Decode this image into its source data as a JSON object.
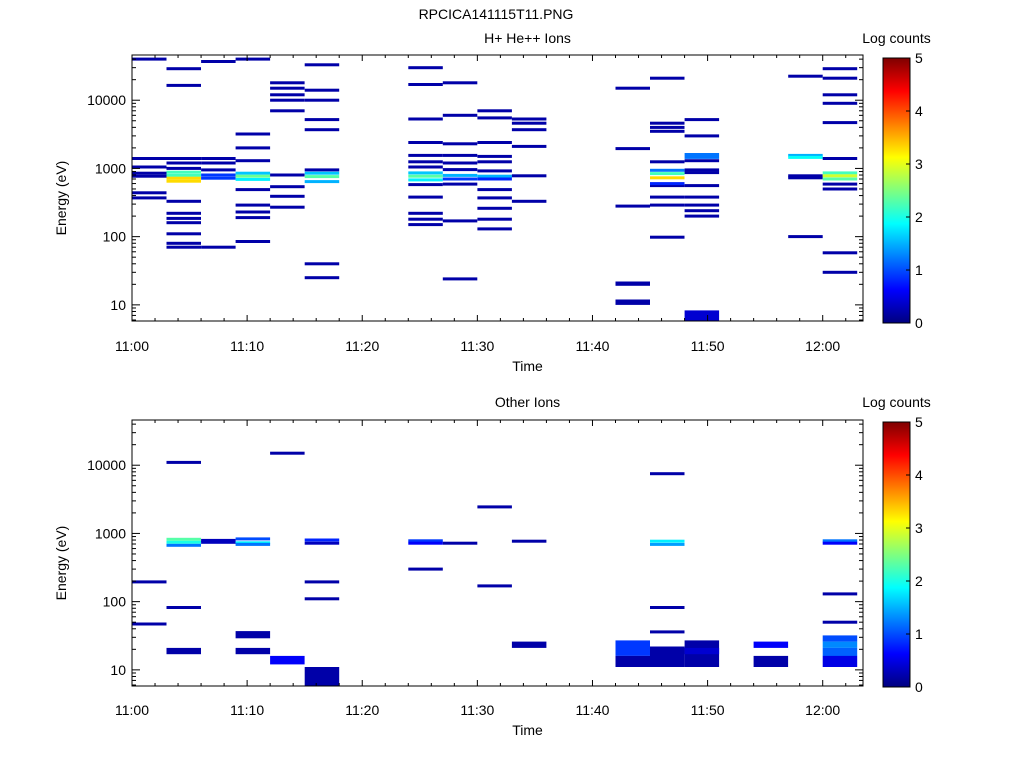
{
  "figure_title": "RPCICA141115T11.PNG",
  "colorscale": {
    "label": "Log counts",
    "min": 0,
    "max": 5,
    "ticks": [
      "0",
      "1",
      "2",
      "3",
      "4",
      "5"
    ],
    "stops": [
      "#00007f",
      "#0000ff",
      "#007fff",
      "#00ffff",
      "#7fff7f",
      "#ffff00",
      "#ff7f00",
      "#ff0000",
      "#7f0000"
    ]
  },
  "chart_data": [
    {
      "type": "heatmap",
      "title": "H+ He++ Ions",
      "xlabel": "Time",
      "ylabel": "Energy (eV)",
      "x_range_minutes": [
        0,
        63.5
      ],
      "x_ticks": [
        {
          "label": "11:00",
          "value": 0
        },
        {
          "label": "11:10",
          "value": 10
        },
        {
          "label": "11:20",
          "value": 20
        },
        {
          "label": "11:30",
          "value": 30
        },
        {
          "label": "11:40",
          "value": 40
        },
        {
          "label": "11:50",
          "value": 50
        },
        {
          "label": "12:00",
          "value": 60
        }
      ],
      "y_scale": "log",
      "y_range": [
        5.8,
        46000
      ],
      "y_ticks": [
        {
          "label": "10",
          "value": 10
        },
        {
          "label": "100",
          "value": 100
        },
        {
          "label": "1000",
          "value": 1000
        },
        {
          "label": "10000",
          "value": 10000
        }
      ],
      "cells": [
        {
          "t": 1.5,
          "w": 3,
          "e": [
            40000,
            1400,
            1050,
            850,
            770,
            440,
            370
          ],
          "v": 0.2
        },
        {
          "t": 4.5,
          "w": 3,
          "e": [
            29000,
            16500,
            1400,
            1200,
            1000,
            330,
            220,
            185,
            160,
            110,
            80,
            70
          ],
          "v": 0.2
        },
        {
          "t": 4.5,
          "w": 3,
          "e": [
            880,
            790
          ],
          "v": 2.2
        },
        {
          "t": 4.5,
          "w": 3,
          "e": [
            720,
            650
          ],
          "v": 3.3
        },
        {
          "t": 7.5,
          "w": 3,
          "e": [
            37000,
            1400,
            1200,
            950,
            70
          ],
          "v": 0.2
        },
        {
          "t": 7.5,
          "w": 3,
          "e": [
            800,
            720
          ],
          "v": 0.9
        },
        {
          "t": 10.5,
          "w": 3,
          "e": [
            40000,
            3200,
            2000,
            1300,
            490,
            290,
            230,
            190,
            85
          ],
          "v": 0.2
        },
        {
          "t": 10.5,
          "w": 3,
          "e": [
            850
          ],
          "v": 1.6
        },
        {
          "t": 10.5,
          "w": 3,
          "e": [
            770
          ],
          "v": 2.4
        },
        {
          "t": 10.5,
          "w": 3,
          "e": [
            690
          ],
          "v": 1.8
        },
        {
          "t": 13.5,
          "w": 3,
          "e": [
            18000,
            15000,
            12000,
            10000,
            7000,
            800,
            540,
            390,
            270
          ],
          "v": 0.2
        },
        {
          "t": 16.5,
          "w": 3,
          "e": [
            33000,
            14000,
            10000,
            5200,
            3700,
            950,
            40,
            25
          ],
          "v": 0.2
        },
        {
          "t": 16.5,
          "w": 3,
          "e": [
            850
          ],
          "v": 1.6
        },
        {
          "t": 16.5,
          "w": 3,
          "e": [
            760
          ],
          "v": 2.3
        },
        {
          "t": 16.5,
          "w": 3,
          "e": [
            640
          ],
          "v": 1.5
        },
        {
          "t": 25.5,
          "w": 3,
          "e": [
            30000,
            17000,
            5300,
            2400,
            1550,
            1250,
            1050,
            580,
            380,
            220,
            180,
            150
          ],
          "v": 0.2
        },
        {
          "t": 25.5,
          "w": 3,
          "e": [
            860
          ],
          "v": 1.6
        },
        {
          "t": 25.5,
          "w": 3,
          "e": [
            770
          ],
          "v": 2.3
        },
        {
          "t": 25.5,
          "w": 3,
          "e": [
            680
          ],
          "v": 1.8
        },
        {
          "t": 28.5,
          "w": 3,
          "e": [
            18000,
            6000,
            2300,
            1550,
            1200,
            960,
            590,
            170,
            24
          ],
          "v": 0.2
        },
        {
          "t": 28.5,
          "w": 3,
          "e": [
            790
          ],
          "v": 1.5
        },
        {
          "t": 28.5,
          "w": 3,
          "e": [
            700
          ],
          "v": 0.9
        },
        {
          "t": 31.5,
          "w": 3,
          "e": [
            7000,
            5500,
            2400,
            1500,
            1250,
            920,
            490,
            370,
            260,
            180,
            130
          ],
          "v": 0.2
        },
        {
          "t": 31.5,
          "w": 3,
          "e": [
            770
          ],
          "v": 1.5
        },
        {
          "t": 31.5,
          "w": 3,
          "e": [
            700
          ],
          "v": 0.8
        },
        {
          "t": 34.5,
          "w": 3,
          "e": [
            5300,
            4600,
            3700,
            2100,
            780,
            330
          ],
          "v": 0.2
        },
        {
          "t": 43.5,
          "w": 3,
          "e": [
            15000,
            1950,
            280
          ],
          "v": 0.2
        },
        {
          "t": 43.5,
          "w": 3,
          "e": [
            22,
            12
          ],
          "h": [
            19,
            10
          ],
          "v": 0.2
        },
        {
          "t": 46.5,
          "w": 3,
          "e": [
            21000,
            4600,
            4000,
            3500,
            1250,
            560,
            380,
            290,
            98
          ],
          "v": 0.2
        },
        {
          "t": 46.5,
          "w": 3,
          "e": [
            940
          ],
          "v": 1.2
        },
        {
          "t": 46.5,
          "w": 3,
          "e": [
            840
          ],
          "v": 2.2
        },
        {
          "t": 46.5,
          "w": 3,
          "e": [
            730
          ],
          "v": 3.3
        },
        {
          "t": 46.5,
          "w": 3,
          "e": [
            600
          ],
          "v": 0.8
        },
        {
          "t": 49.5,
          "w": 3,
          "e": [
            8.3
          ],
          "h": [
            5.8
          ],
          "v": 0.4
        },
        {
          "t": 49.5,
          "w": 3,
          "e": [
            5200,
            3000,
            1300,
            950,
            870,
            560,
            380,
            290,
            240,
            200
          ],
          "v": 0.2
        },
        {
          "t": 49.5,
          "w": 3,
          "e": [
            1600,
            1450
          ],
          "v": 1.2
        },
        {
          "t": 58.5,
          "w": 3,
          "e": [
            22500,
            780,
            730,
            100
          ],
          "v": 0.2
        },
        {
          "t": 58.5,
          "w": 3,
          "e": [
            1550
          ],
          "v": 1.5
        },
        {
          "t": 58.5,
          "w": 3,
          "e": [
            1450
          ],
          "v": 1.9
        },
        {
          "t": 61.5,
          "w": 3,
          "e": [
            29000,
            21000,
            12000,
            9000,
            4700,
            1400,
            590,
            500,
            58,
            30
          ],
          "v": 0.2
        },
        {
          "t": 61.5,
          "w": 3,
          "e": [
            860
          ],
          "v": 2.2
        },
        {
          "t": 61.5,
          "w": 3,
          "e": [
            780
          ],
          "v": 2.9
        },
        {
          "t": 61.5,
          "w": 3,
          "e": [
            700
          ],
          "v": 2.3
        }
      ]
    },
    {
      "type": "heatmap",
      "title": "Other Ions",
      "xlabel": "Time",
      "ylabel": "Energy (eV)",
      "x_range_minutes": [
        0,
        63.5
      ],
      "x_ticks": [
        {
          "label": "11:00",
          "value": 0
        },
        {
          "label": "11:10",
          "value": 10
        },
        {
          "label": "11:20",
          "value": 20
        },
        {
          "label": "11:30",
          "value": 30
        },
        {
          "label": "11:40",
          "value": 40
        },
        {
          "label": "11:50",
          "value": 50
        },
        {
          "label": "12:00",
          "value": 60
        }
      ],
      "y_scale": "log",
      "y_range": [
        5.8,
        46000
      ],
      "y_ticks": [
        {
          "label": "10",
          "value": 10
        },
        {
          "label": "100",
          "value": 100
        },
        {
          "label": "1000",
          "value": 1000
        },
        {
          "label": "10000",
          "value": 10000
        }
      ],
      "cells": [
        {
          "t": 1.5,
          "w": 3,
          "e": [
            195,
            47
          ],
          "v": 0.2
        },
        {
          "t": 4.5,
          "w": 3,
          "e": [
            11000
          ],
          "v": 0.2
        },
        {
          "t": 4.5,
          "w": 3,
          "e": [
            820
          ],
          "v": 2.3
        },
        {
          "t": 4.5,
          "w": 3,
          "e": [
            740
          ],
          "v": 2.0
        },
        {
          "t": 4.5,
          "w": 3,
          "e": [
            670
          ],
          "v": 1.2
        },
        {
          "t": 4.5,
          "w": 3,
          "e": [
            82
          ],
          "v": 0.2
        },
        {
          "t": 4.5,
          "w": 3,
          "e": [
            21
          ],
          "h": [
            17
          ],
          "v": 0.2
        },
        {
          "t": 7.5,
          "w": 3,
          "e": [
            790,
            740
          ],
          "v": 0.3
        },
        {
          "t": 10.5,
          "w": 3,
          "e": [
            830
          ],
          "v": 1.0
        },
        {
          "t": 10.5,
          "w": 3,
          "e": [
            730
          ],
          "v": 1.8
        },
        {
          "t": 10.5,
          "w": 3,
          "e": [
            690
          ],
          "v": 1.2
        },
        {
          "t": 10.5,
          "w": 3,
          "e": [
            37
          ],
          "h": [
            29
          ],
          "v": 0.2
        },
        {
          "t": 10.5,
          "w": 3,
          "e": [
            21
          ],
          "h": [
            17
          ],
          "v": 0.2
        },
        {
          "t": 13.5,
          "w": 3,
          "e": [
            15000
          ],
          "v": 0.2
        },
        {
          "t": 13.5,
          "w": 3,
          "e": [
            16
          ],
          "h": [
            12
          ],
          "v": 0.6
        },
        {
          "t": 16.5,
          "w": 3,
          "e": [
            800
          ],
          "v": 0.8
        },
        {
          "t": 16.5,
          "w": 3,
          "e": [
            720
          ],
          "v": 0.3
        },
        {
          "t": 16.5,
          "w": 3,
          "e": [
            195,
            110
          ],
          "v": 0.2
        },
        {
          "t": 16.5,
          "w": 3,
          "e": [
            11
          ],
          "h": [
            5.8
          ],
          "v": 0.2
        },
        {
          "t": 25.5,
          "w": 3,
          "e": [
            780
          ],
          "v": 0.9
        },
        {
          "t": 25.5,
          "w": 3,
          "e": [
            720
          ],
          "v": 0.6
        },
        {
          "t": 25.5,
          "w": 3,
          "e": [
            300
          ],
          "v": 0.2
        },
        {
          "t": 28.5,
          "w": 3,
          "e": [
            720
          ],
          "v": 0.2
        },
        {
          "t": 31.5,
          "w": 3,
          "e": [
            2450,
            170
          ],
          "v": 0.2
        },
        {
          "t": 34.5,
          "w": 3,
          "e": [
            770
          ],
          "v": 0.2
        },
        {
          "t": 34.5,
          "w": 3,
          "e": [
            26
          ],
          "h": [
            21
          ],
          "v": 0.2
        },
        {
          "t": 43.5,
          "w": 3,
          "e": [
            27
          ],
          "h": [
            16
          ],
          "v": 0.9
        },
        {
          "t": 43.5,
          "w": 3,
          "e": [
            16
          ],
          "h": [
            11
          ],
          "v": 0.2
        },
        {
          "t": 46.5,
          "w": 3,
          "e": [
            7500,
            82,
            36
          ],
          "v": 0.2
        },
        {
          "t": 46.5,
          "w": 3,
          "e": [
            770
          ],
          "v": 1.8
        },
        {
          "t": 46.5,
          "w": 3,
          "e": [
            690
          ],
          "v": 1.4
        },
        {
          "t": 46.5,
          "w": 3,
          "e": [
            22
          ],
          "h": [
            11
          ],
          "v": 0.2
        },
        {
          "t": 49.5,
          "w": 3,
          "e": [
            27
          ],
          "h": [
            11
          ],
          "v": 0.2
        },
        {
          "t": 49.5,
          "w": 3,
          "e": [
            21
          ],
          "h": [
            17
          ],
          "v": 0.4
        },
        {
          "t": 55.5,
          "w": 3,
          "e": [
            26
          ],
          "h": [
            21
          ],
          "v": 0.6
        },
        {
          "t": 55.5,
          "w": 3,
          "e": [
            16
          ],
          "h": [
            11
          ],
          "v": 0.2
        },
        {
          "t": 61.5,
          "w": 3,
          "e": [
            780
          ],
          "v": 1.2
        },
        {
          "t": 61.5,
          "w": 3,
          "e": [
            720
          ],
          "v": 0.6
        },
        {
          "t": 61.5,
          "w": 3,
          "e": [
            130,
            50
          ],
          "v": 0.2
        },
        {
          "t": 61.5,
          "w": 3,
          "e": [
            32
          ],
          "h": [
            26
          ],
          "v": 1.0
        },
        {
          "t": 61.5,
          "w": 3,
          "e": [
            26
          ],
          "h": [
            21
          ],
          "v": 1.3
        },
        {
          "t": 61.5,
          "w": 3,
          "e": [
            21
          ],
          "h": [
            16
          ],
          "v": 1.1
        },
        {
          "t": 61.5,
          "w": 3,
          "e": [
            16
          ],
          "h": [
            11
          ],
          "v": 0.5
        }
      ]
    }
  ]
}
